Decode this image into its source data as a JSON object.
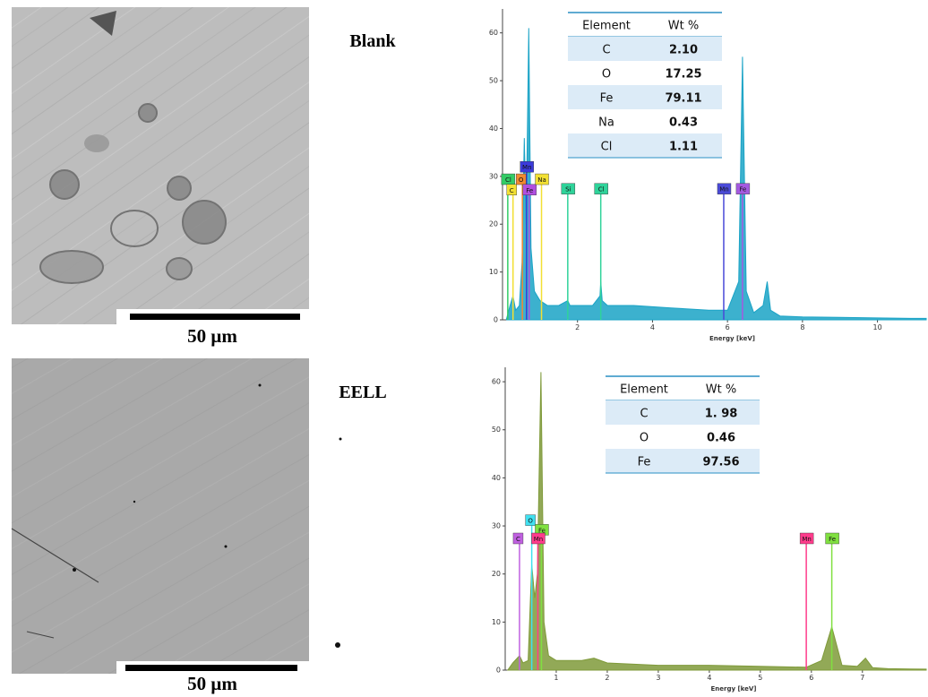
{
  "sem_panels": [
    {
      "label": "Blank",
      "scale_bar": "50 μm"
    },
    {
      "label": "EELL",
      "scale_bar": "50 μm"
    }
  ],
  "chart_data": [
    {
      "type": "area",
      "x_label": "Energy [keV]",
      "color": "#1aa3c6",
      "x": [
        0.1,
        0.2,
        0.28,
        0.35,
        0.45,
        0.52,
        0.58,
        0.63,
        0.7,
        0.76,
        0.85,
        1.0,
        1.2,
        1.5,
        1.74,
        1.8,
        2.0,
        2.4,
        2.6,
        2.62,
        2.66,
        2.8,
        3.5,
        4.5,
        5.5,
        6.0,
        6.3,
        6.4,
        6.5,
        6.7,
        6.95,
        7.06,
        7.15,
        7.4,
        8,
        9,
        10,
        11,
        11.3
      ],
      "values": [
        0,
        3,
        5,
        2,
        3,
        12,
        38,
        20,
        61,
        15,
        6,
        4,
        3,
        3,
        4,
        3,
        3,
        3,
        5,
        8,
        4,
        3,
        3,
        2.5,
        2,
        2,
        8,
        55,
        6,
        1.5,
        3,
        8,
        2,
        0.8,
        0.6,
        0.5,
        0.4,
        0.3,
        0.3
      ],
      "xlim": [
        0,
        11.3
      ],
      "ylim": [
        0,
        65
      ],
      "xticks": [
        2,
        4,
        6,
        8,
        10
      ],
      "yticks": [
        0,
        10,
        20,
        30,
        40,
        50,
        60
      ],
      "annotations": [
        {
          "text": "Cl",
          "x": 0.14,
          "color": "#33cc66"
        },
        {
          "text": "C",
          "x": 0.28,
          "color": "#f2e033"
        },
        {
          "text": "Mn",
          "x": 0.64,
          "color": "#3b3bdb"
        },
        {
          "text": "O",
          "x": 0.53,
          "color": "#f08a30"
        },
        {
          "text": "Fe",
          "x": 0.71,
          "color": "#b04fe0"
        },
        {
          "text": "Na",
          "x": 1.04,
          "color": "#f2e033"
        },
        {
          "text": "Si",
          "x": 1.74,
          "color": "#2fd39a"
        },
        {
          "text": "Cl",
          "x": 2.62,
          "color": "#2fd39a"
        },
        {
          "text": "Mn",
          "x": 5.9,
          "color": "#4a4ad8"
        },
        {
          "text": "Fe",
          "x": 6.4,
          "color": "#a45ae0"
        }
      ],
      "table": {
        "header": [
          "Element",
          "Wt %"
        ],
        "rows": [
          [
            "C",
            "2.10"
          ],
          [
            "O",
            "17.25"
          ],
          [
            "Fe",
            "79.11"
          ],
          [
            "Na",
            "0.43"
          ],
          [
            "Cl",
            "1.11"
          ]
        ]
      }
    },
    {
      "type": "area",
      "x_label": "Energy [keV]",
      "color": "#7f9a3a",
      "x": [
        0.05,
        0.15,
        0.28,
        0.35,
        0.45,
        0.52,
        0.58,
        0.63,
        0.7,
        0.76,
        0.85,
        1.0,
        1.5,
        1.74,
        2.0,
        3,
        4,
        5,
        5.9,
        6.2,
        6.4,
        6.6,
        6.9,
        7.06,
        7.2,
        7.5,
        8.25
      ],
      "values": [
        0,
        1.5,
        3,
        1.5,
        2,
        22,
        15,
        20,
        62,
        10,
        3,
        2,
        2,
        2.5,
        1.5,
        1,
        1,
        0.8,
        0.6,
        2,
        9,
        1,
        0.8,
        2.5,
        0.5,
        0.3,
        0.2
      ],
      "xlim": [
        0,
        8.25
      ],
      "ylim": [
        0,
        63
      ],
      "xticks": [
        1,
        2,
        3,
        4,
        5,
        6,
        7
      ],
      "yticks": [
        0,
        10,
        20,
        30,
        40,
        50,
        60
      ],
      "annotations": [
        {
          "text": "C",
          "x": 0.28,
          "color": "#c060e0"
        },
        {
          "text": "O",
          "x": 0.52,
          "color": "#40e0f0"
        },
        {
          "text": "Fe",
          "x": 0.71,
          "color": "#80e040"
        },
        {
          "text": "Mn",
          "x": 0.64,
          "color": "#ff3c8c"
        },
        {
          "text": "Mn",
          "x": 5.9,
          "color": "#ff3c8c"
        },
        {
          "text": "Fe",
          "x": 6.4,
          "color": "#80e040"
        }
      ],
      "table": {
        "header": [
          "Element",
          "Wt %"
        ],
        "rows": [
          [
            "C",
            "1. 98"
          ],
          [
            "O",
            "0.46"
          ],
          [
            "Fe",
            "97.56"
          ]
        ]
      }
    }
  ]
}
